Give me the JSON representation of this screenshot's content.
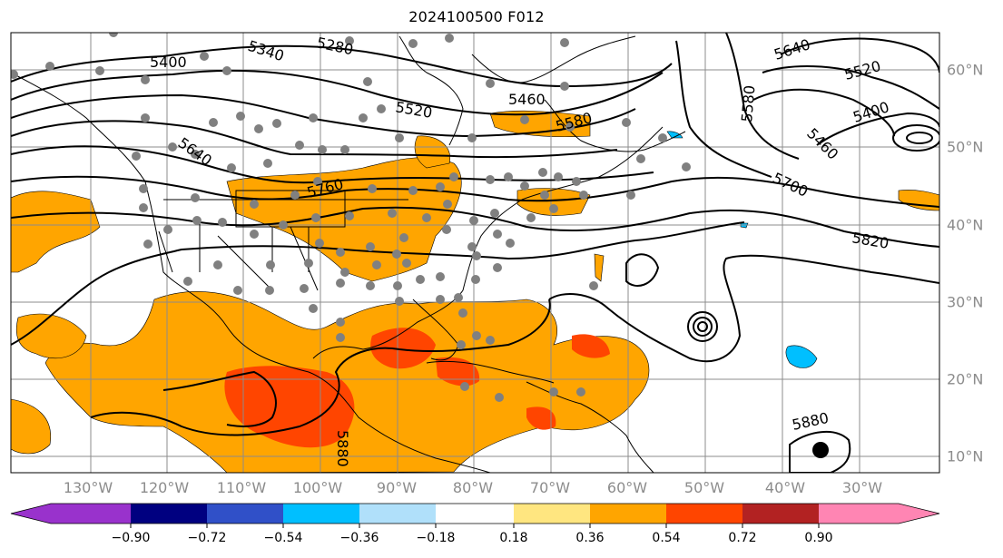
{
  "title": "2024100500 F012",
  "lon_labels": [
    "130°W",
    "120°W",
    "110°W",
    "100°W",
    "90°W",
    "80°W",
    "70°W",
    "60°W",
    "50°W",
    "40°W",
    "30°W"
  ],
  "lat_labels": [
    "60°N",
    "50°N",
    "40°N",
    "30°N",
    "20°N",
    "10°N"
  ],
  "contour_labels": [
    "5400",
    "5340",
    "5280",
    "5460",
    "5520",
    "5580",
    "5640",
    "5760",
    "5640",
    "5520",
    "5400",
    "5460",
    "5580",
    "5700",
    "5820",
    "5880",
    "5880"
  ],
  "colorbar": {
    "ticks": [
      "−0.90",
      "−0.72",
      "−0.54",
      "−0.36",
      "−0.18",
      "0.18",
      "0.36",
      "0.54",
      "0.72",
      "0.90"
    ],
    "colors": {
      "lt_-0.90": "#9932cc",
      "-0.90_-0.72": "#000080",
      "-0.72_-0.54": "#3050c8",
      "-0.54_-0.36": "#00bfff",
      "-0.36_-0.18": "#b0e0fa",
      "-0.18_0.18": "#ffffff",
      "0.18_0.36": "#ffe680",
      "0.36_0.54": "#ffa500",
      "0.54_0.72": "#ff4500",
      "0.72_0.90": "#b22222",
      "gt_0.90": "#ff85b3"
    }
  }
}
